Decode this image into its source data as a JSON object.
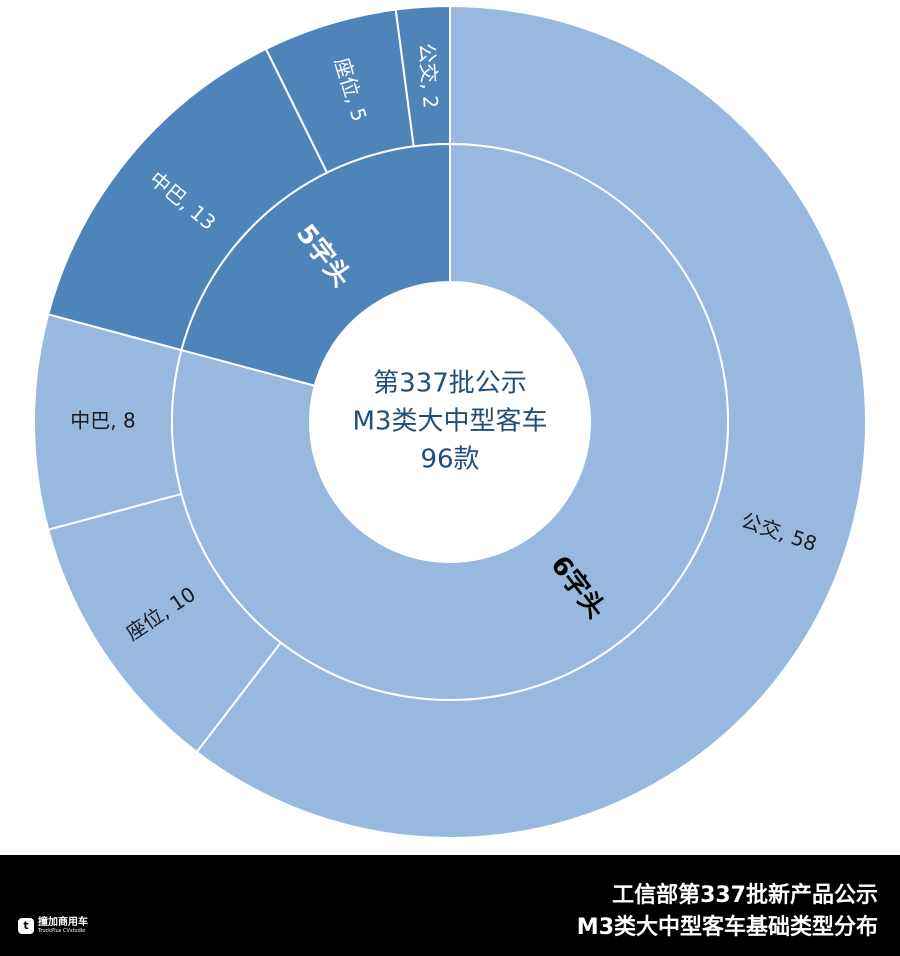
{
  "chart_data": {
    "type": "sunburst",
    "center_text": [
      "第337批公示",
      "M3类大中型客车",
      "96款"
    ],
    "series": [
      {
        "name": "6字头",
        "color": "#97b9e0",
        "label_color": "#1a1a1a",
        "children": {
          "values": [
            58,
            10,
            8
          ],
          "value_labels": [
            "公交, 58",
            "座位, 10",
            "中巴, 8"
          ]
        }
      },
      {
        "name": "5字头",
        "color": "#4f84bb",
        "label_color": "#ffffff",
        "children": {
          "values": [
            13,
            5,
            2
          ],
          "value_labels": [
            "中巴, 13",
            "座位, 5",
            "公交, 2"
          ]
        }
      }
    ]
  },
  "footer": {
    "lines": [
      "工信部第337批新产品公示",
      "M3类大中型客车基础类型分布"
    ]
  },
  "logo": {
    "name": "撞加商用车",
    "subtitle": "TruckPlus CVstudio"
  }
}
